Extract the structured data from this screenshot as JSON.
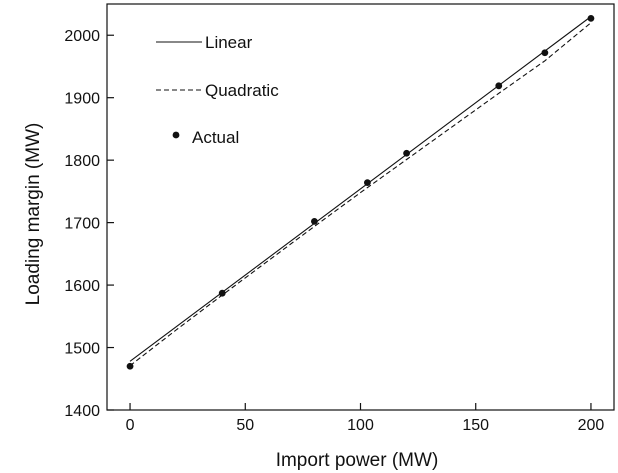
{
  "chart_data": {
    "type": "line",
    "xlabel": "Import power (MW)",
    "ylabel": "Loading margin (MW)",
    "xlim": [
      -10,
      210
    ],
    "ylim": [
      1400,
      2050
    ],
    "x_ticks": [
      0,
      50,
      100,
      150,
      200
    ],
    "y_ticks": [
      1400,
      1500,
      1600,
      1700,
      1800,
      1900,
      2000
    ],
    "grid": false,
    "legend_position": "top-left",
    "series": [
      {
        "name": "Linear",
        "style": "solid",
        "x": [
          0,
          200
        ],
        "y": [
          1478,
          2030
        ]
      },
      {
        "name": "Quadratic",
        "style": "dashed",
        "x": [
          0,
          20,
          40,
          60,
          80,
          100,
          120,
          140,
          160,
          180,
          200
        ],
        "y": [
          1471,
          1528,
          1584,
          1639,
          1694,
          1748,
          1801,
          1854,
          1907,
          1959,
          2020
        ]
      },
      {
        "name": "Actual",
        "style": "markers",
        "x": [
          0,
          40,
          80,
          103,
          120,
          160,
          180,
          200
        ],
        "y": [
          1470,
          1587,
          1702,
          1764,
          1811,
          1919,
          1972,
          2027
        ]
      }
    ],
    "colors": {
      "line": "#111111",
      "frame": "#111111",
      "background": "#ffffff"
    }
  }
}
